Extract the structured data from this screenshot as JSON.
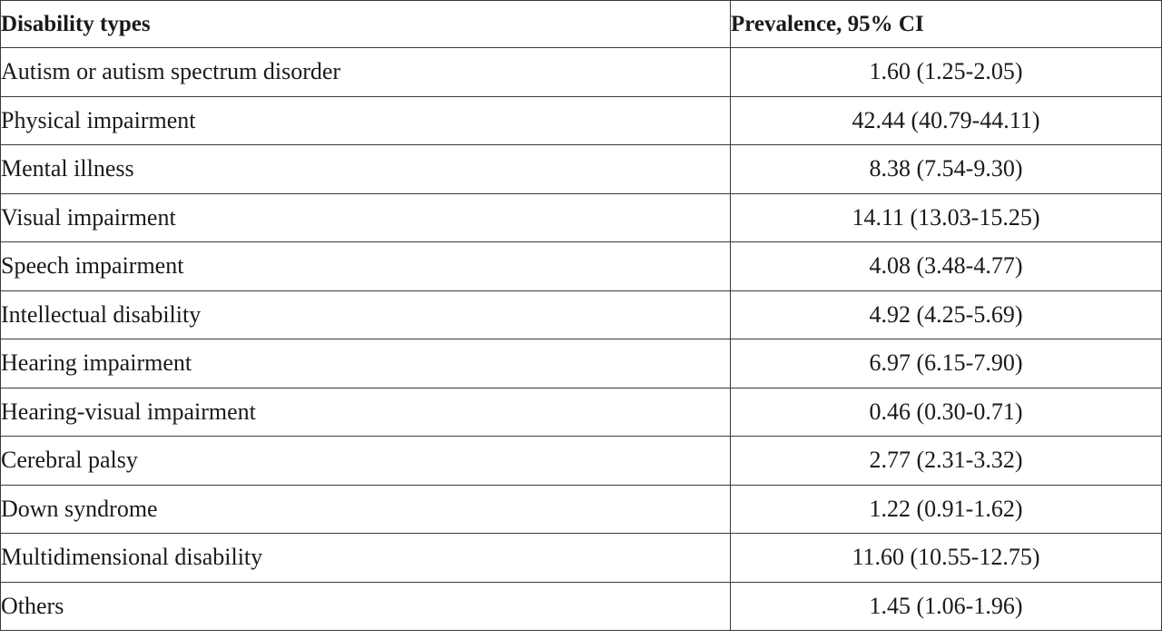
{
  "table": {
    "headers": {
      "type": "Disability types",
      "prevalence": "Prevalence, 95% CI"
    },
    "rows": [
      {
        "type": "Autism or autism spectrum disorder",
        "prevalence": "1.60 (1.25-2.05)"
      },
      {
        "type": "Physical impairment",
        "prevalence": "42.44 (40.79-44.11)"
      },
      {
        "type": "Mental illness",
        "prevalence": "8.38 (7.54-9.30)"
      },
      {
        "type": "Visual impairment",
        "prevalence": "14.11 (13.03-15.25)"
      },
      {
        "type": "Speech impairment",
        "prevalence": "4.08 (3.48-4.77)"
      },
      {
        "type": "Intellectual disability",
        "prevalence": "4.92 (4.25-5.69)"
      },
      {
        "type": "Hearing impairment",
        "prevalence": "6.97 (6.15-7.90)"
      },
      {
        "type": "Hearing-visual impairment",
        "prevalence": "0.46 (0.30-0.71)"
      },
      {
        "type": "Cerebral palsy",
        "prevalence": "2.77 (2.31-3.32)"
      },
      {
        "type": "Down syndrome",
        "prevalence": "1.22 (0.91-1.62)"
      },
      {
        "type": "Multidimensional disability",
        "prevalence": "11.60 (10.55-12.75)"
      },
      {
        "type": "Others",
        "prevalence": "1.45 (1.06-1.96)"
      }
    ]
  }
}
